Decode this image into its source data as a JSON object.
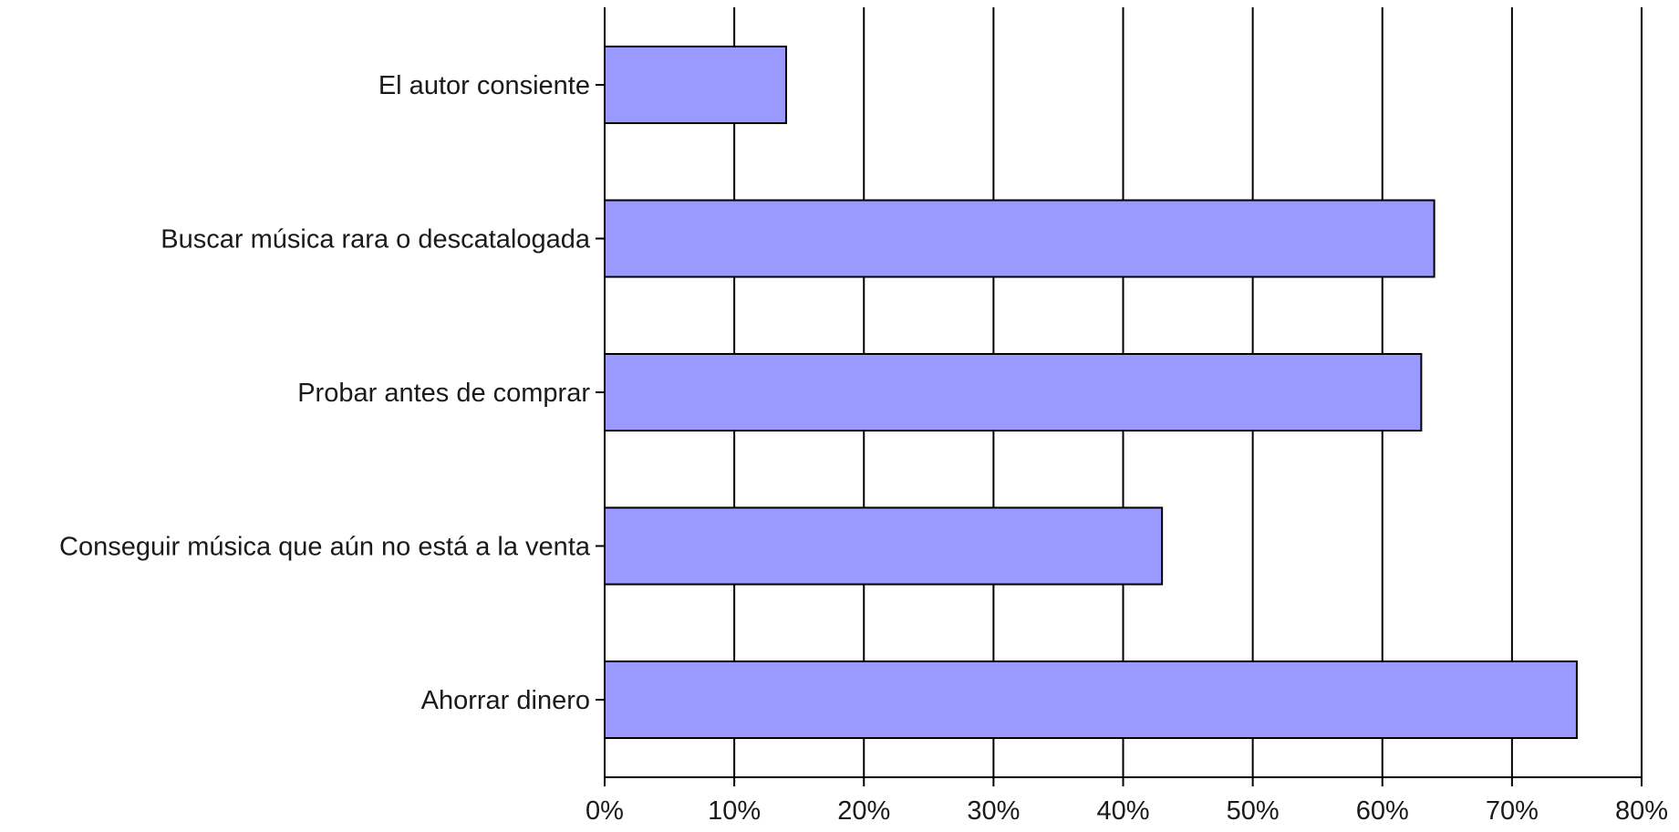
{
  "chart_data": {
    "type": "bar",
    "orientation": "horizontal",
    "title": "",
    "xlabel": "",
    "ylabel": "",
    "categories": [
      "El autor consiente",
      "Buscar música rara o descatalogada",
      "Probar antes de comprar",
      "Conseguir música que aún no está a la venta",
      "Ahorrar dinero"
    ],
    "values": [
      14,
      64,
      63,
      43,
      75
    ],
    "unit": "%",
    "xlim": [
      0,
      80
    ],
    "xticks": [
      0,
      10,
      20,
      30,
      40,
      50,
      60,
      70,
      80
    ],
    "xtick_labels": [
      "0%",
      "10%",
      "20%",
      "30%",
      "40%",
      "50%",
      "60%",
      "70%",
      "80%"
    ],
    "grid": "vertical",
    "legend": "none",
    "colors": {
      "bar_fill": "#9999ff",
      "bar_stroke": "#000000",
      "grid": "#000000",
      "text": "#1a1a1a",
      "background": "#ffffff"
    }
  }
}
